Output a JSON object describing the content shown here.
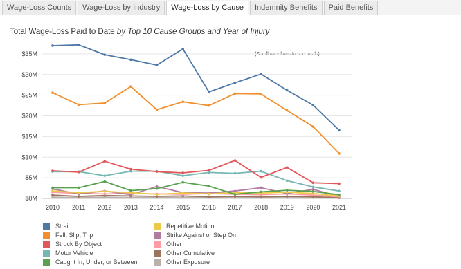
{
  "tabs": [
    {
      "label": "Wage-Loss Counts",
      "active": false
    },
    {
      "label": "Wage-Loss by Industry",
      "active": false
    },
    {
      "label": "Wage-Loss by Cause",
      "active": true
    },
    {
      "label": "Indemnity Benefits",
      "active": false
    },
    {
      "label": "Paid Benefits",
      "active": false
    }
  ],
  "title": {
    "main": "Total Wage-Loss Paid to Date",
    "italic": "by Top 10 Cause Groups and Year of Injury"
  },
  "note": "(Scroll over lines to see totals)",
  "chart_data": {
    "type": "line",
    "x": [
      2010,
      2011,
      2012,
      2013,
      2014,
      2015,
      2016,
      2017,
      2018,
      2019,
      2020,
      2021
    ],
    "ylim": [
      0,
      38
    ],
    "yticks": [
      0,
      5,
      10,
      15,
      20,
      25,
      30,
      35
    ],
    "ytick_labels": [
      "$0M",
      "$5M",
      "$10M",
      "$15M",
      "$20M",
      "$25M",
      "$30M",
      "$35M"
    ],
    "grid": true,
    "series": [
      {
        "name": "Strain",
        "color": "#4e79a7",
        "values": [
          37.0,
          37.2,
          34.8,
          33.6,
          32.3,
          36.2,
          25.8,
          28.0,
          30.1,
          26.2,
          22.6,
          16.5
        ]
      },
      {
        "name": "Fell, Slip, Trip",
        "color": "#f28e2b",
        "values": [
          25.6,
          22.7,
          23.1,
          27.1,
          21.5,
          23.4,
          22.5,
          25.4,
          25.3,
          21.3,
          17.4,
          10.9
        ]
      },
      {
        "name": "Struck By Object",
        "color": "#e15759",
        "values": [
          6.7,
          6.4,
          9.0,
          7.1,
          6.5,
          6.2,
          6.8,
          9.2,
          5.1,
          7.5,
          3.8,
          3.6
        ]
      },
      {
        "name": "Motor Vehicle",
        "color": "#76b7b2",
        "values": [
          6.5,
          6.5,
          5.5,
          6.6,
          6.6,
          5.5,
          6.3,
          6.1,
          6.6,
          4.3,
          2.8,
          1.8
        ]
      },
      {
        "name": "Caught In, Under, or Between",
        "color": "#59a14f",
        "values": [
          2.6,
          2.6,
          4.1,
          1.9,
          2.4,
          3.9,
          3.0,
          1.0,
          1.6,
          2.0,
          1.7,
          0.9
        ]
      },
      {
        "name": "Repetitive Motion",
        "color": "#edc948",
        "values": [
          1.8,
          1.4,
          1.7,
          1.4,
          1.0,
          1.3,
          1.1,
          1.4,
          1.3,
          1.5,
          1.2,
          0.6
        ]
      },
      {
        "name": "Strike Against or Step On",
        "color": "#b07aa1",
        "values": [
          2.3,
          1.1,
          1.8,
          0.9,
          2.9,
          1.4,
          1.3,
          1.8,
          2.6,
          1.2,
          2.2,
          0.5
        ]
      },
      {
        "name": "Other",
        "color": "#ff9da7",
        "values": [
          1.5,
          1.2,
          1.1,
          1.2,
          1.1,
          1.0,
          1.2,
          1.0,
          0.9,
          1.1,
          0.8,
          0.4
        ]
      },
      {
        "name": "Other Cumulative",
        "color": "#9c755f",
        "values": [
          0.8,
          0.5,
          0.7,
          0.6,
          0.5,
          0.6,
          0.4,
          0.5,
          0.4,
          0.5,
          0.4,
          0.2
        ]
      },
      {
        "name": "Other Exposure",
        "color": "#bab0ac",
        "values": [
          0.3,
          0.2,
          0.3,
          0.2,
          0.2,
          0.2,
          0.3,
          0.2,
          0.2,
          0.2,
          0.2,
          0.1
        ]
      }
    ]
  }
}
